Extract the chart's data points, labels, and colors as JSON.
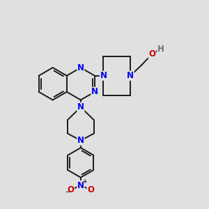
{
  "bg_color": "#e0e0e0",
  "bond_color": "#1a1a1a",
  "N_color": "#0000ee",
  "O_color": "#cc0000",
  "H_color": "#707070",
  "bond_width": 1.4,
  "font_size_atom": 8.5,
  "fig_width": 3.0,
  "fig_height": 3.0,
  "dpi": 100,
  "xlim": [
    0,
    10
  ],
  "ylim": [
    0,
    10
  ]
}
